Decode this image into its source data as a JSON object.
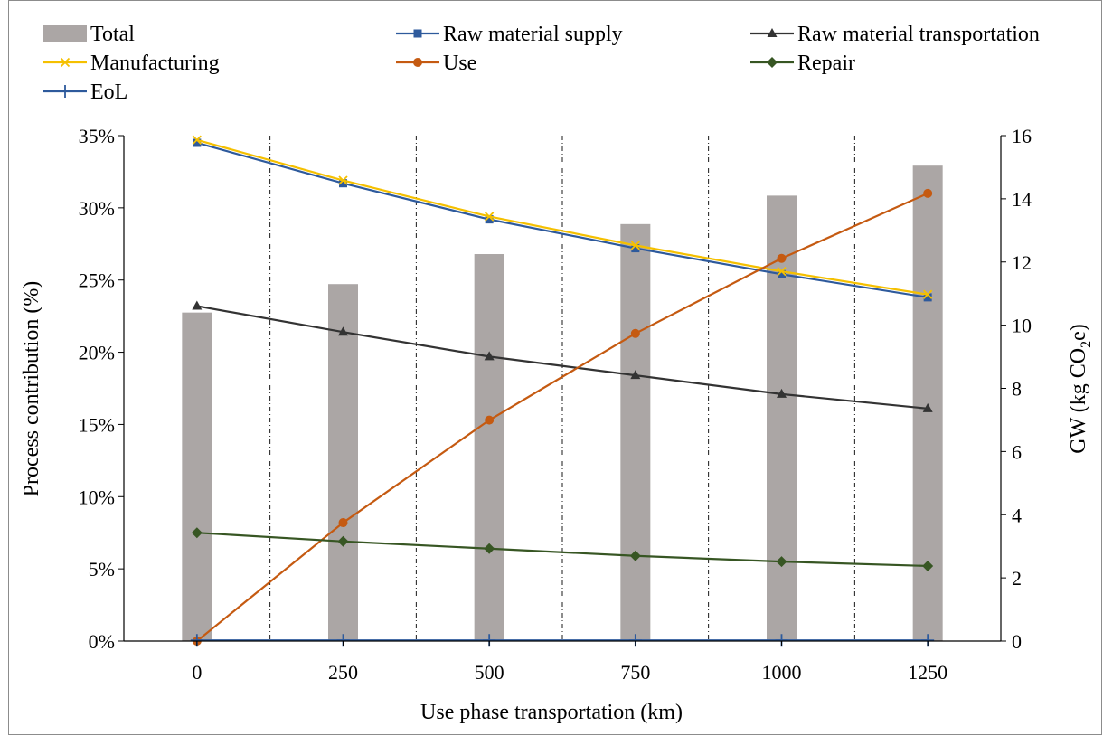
{
  "chart_data": {
    "type": "bar+line",
    "xlabel": "Use phase transportation (km)",
    "ylabel": "Process contribution (%)",
    "ylabel2_prefix": "GW (kg CO",
    "ylabel2_sub": "2",
    "ylabel2_suffix": "e)",
    "categories": [
      "0",
      "250",
      "500",
      "750",
      "1000",
      "1250"
    ],
    "y_ticks": [
      "0%",
      "5%",
      "10%",
      "15%",
      "20%",
      "25%",
      "30%",
      "35%"
    ],
    "y2_ticks": [
      "0",
      "2",
      "4",
      "6",
      "8",
      "10",
      "12",
      "14",
      "16"
    ],
    "ylim": [
      0,
      35
    ],
    "y2lim": [
      0,
      16
    ],
    "legend_position": "top",
    "bars": {
      "name": "Total",
      "axis": "right",
      "color": "#aba6a5",
      "values": [
        10.4,
        11.3,
        12.25,
        13.2,
        14.1,
        15.05
      ]
    },
    "series": [
      {
        "name": "Raw material supply",
        "axis": "left",
        "color": "#2e5a9c",
        "marker": "square",
        "values": [
          34.5,
          31.7,
          29.2,
          27.2,
          25.4,
          23.8
        ]
      },
      {
        "name": "Raw material transportation",
        "axis": "left",
        "color": "#333333",
        "marker": "triangle",
        "values": [
          23.2,
          21.4,
          19.7,
          18.4,
          17.1,
          16.1
        ]
      },
      {
        "name": "Manufacturing",
        "axis": "left",
        "color": "#f5c000",
        "marker": "x",
        "values": [
          34.7,
          31.9,
          29.4,
          27.4,
          25.6,
          24.0
        ]
      },
      {
        "name": "Use",
        "axis": "left",
        "color": "#c55a11",
        "marker": "circle",
        "values": [
          0.0,
          8.2,
          15.3,
          21.3,
          26.5,
          31.0
        ]
      },
      {
        "name": "Repair",
        "axis": "left",
        "color": "#375623",
        "marker": "diamond",
        "values": [
          7.5,
          6.9,
          6.4,
          5.9,
          5.5,
          5.2
        ]
      },
      {
        "name": "EoL",
        "axis": "left",
        "color": "#2e5a9c",
        "marker": "plus",
        "values": [
          0.05,
          0.05,
          0.05,
          0.05,
          0.05,
          0.05
        ]
      }
    ]
  }
}
